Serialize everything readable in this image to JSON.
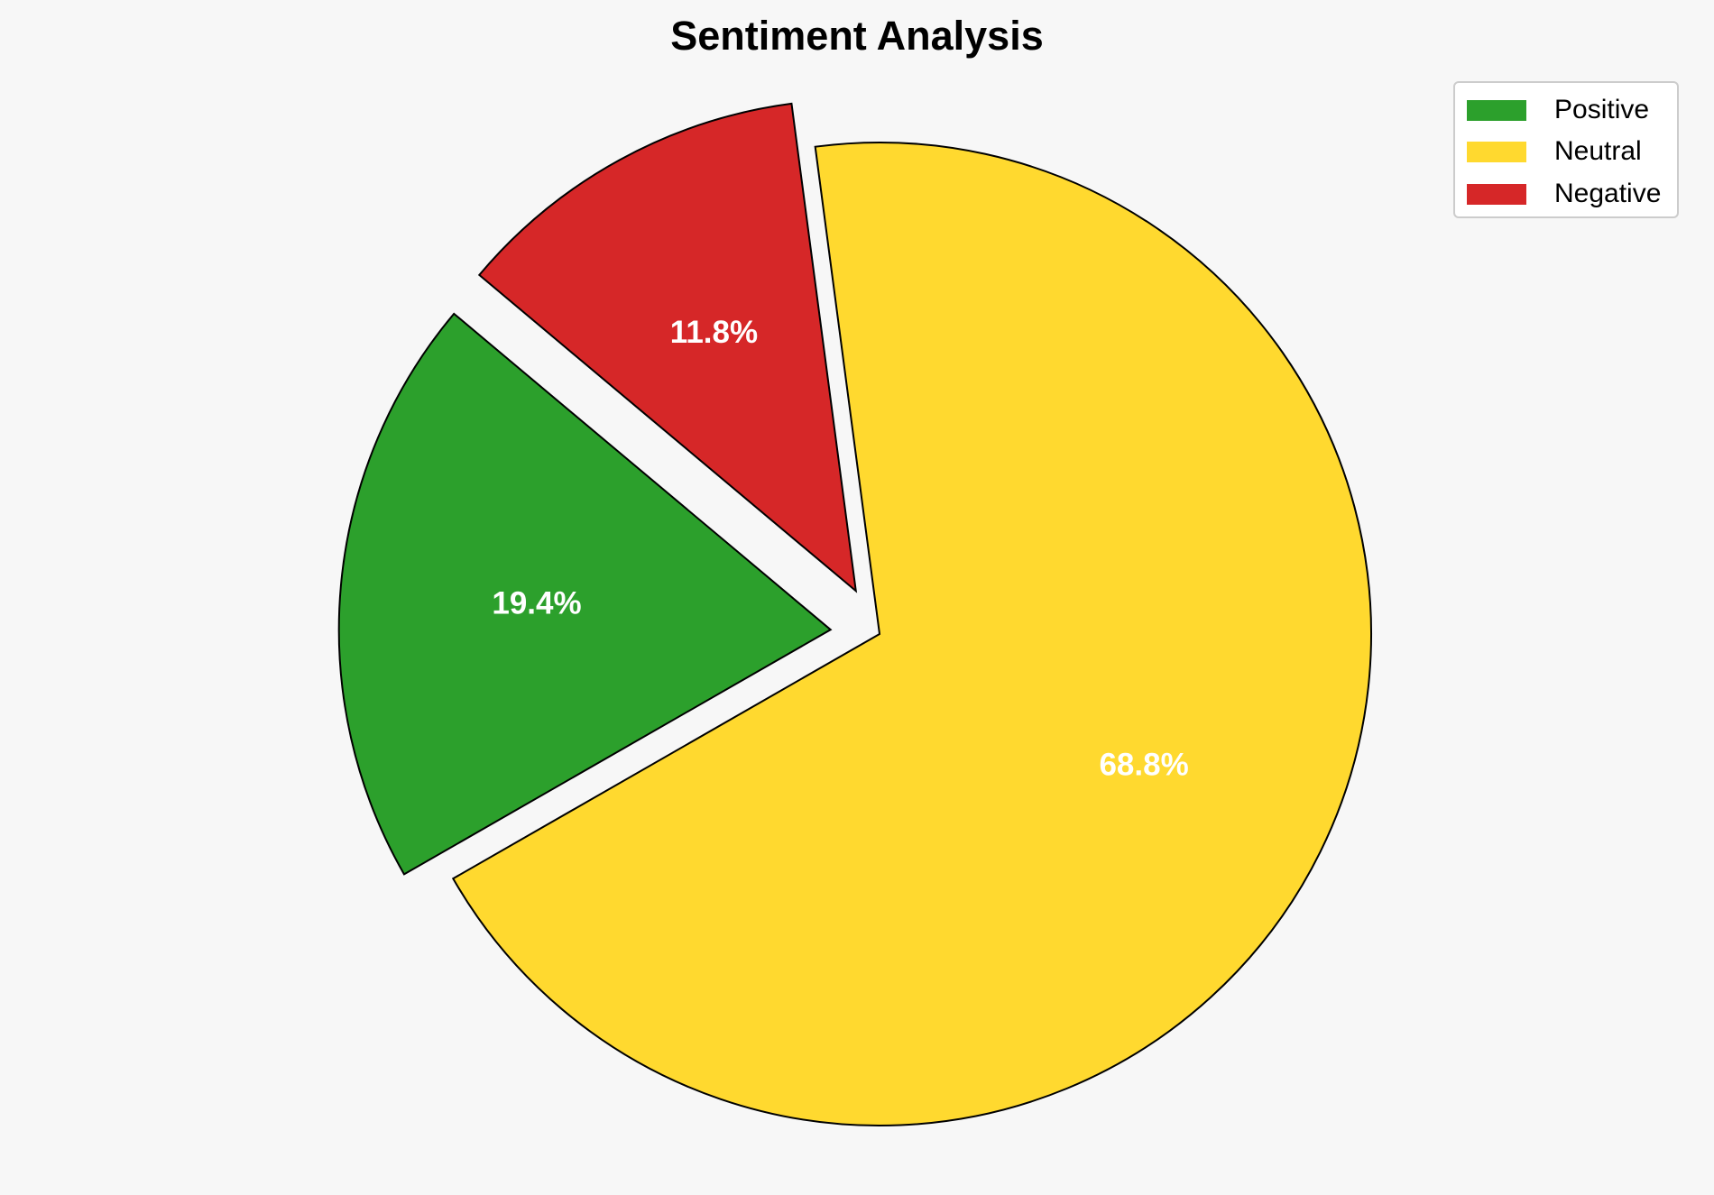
{
  "chart_data": {
    "type": "pie",
    "title": "Sentiment Analysis",
    "categories": [
      "Positive",
      "Neutral",
      "Negative"
    ],
    "values": [
      19.4,
      68.8,
      11.8
    ],
    "labels": [
      "19.4%",
      "68.8%",
      "11.8%"
    ],
    "colors": [
      "#2ca02c",
      "#ffd92f",
      "#d62728"
    ],
    "explode": [
      0.1,
      0,
      0.1
    ],
    "start_angle": 140,
    "direction": "counterclockwise",
    "legend": {
      "placement": "top-right",
      "entries": [
        "Positive",
        "Neutral",
        "Negative"
      ]
    }
  }
}
